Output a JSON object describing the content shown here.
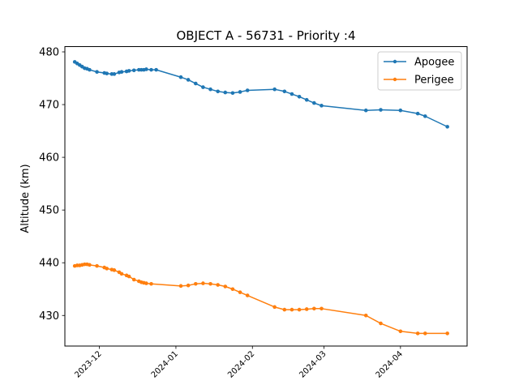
{
  "chart_data": {
    "type": "line",
    "title": "OBJECT A - 56731 - Priority :4",
    "xlabel": "",
    "ylabel": "Altitude (km)",
    "x_axis_type": "date",
    "xlim": [
      "2023-11-17",
      "2024-04-28"
    ],
    "ylim": [
      424.2,
      481.0
    ],
    "x_ticks": [
      "2023-12",
      "2024-01",
      "2024-02",
      "2024-03",
      "2024-04"
    ],
    "y_ticks": [
      430,
      440,
      450,
      460,
      470,
      480
    ],
    "grid": false,
    "legend_position": "top-right",
    "series": [
      {
        "name": "Apogee",
        "color": "#1f77b4",
        "points": [
          [
            "2023-11-21",
            478.1
          ],
          [
            "2023-11-22",
            477.8
          ],
          [
            "2023-11-23",
            477.5
          ],
          [
            "2023-11-24",
            477.2
          ],
          [
            "2023-11-25",
            476.9
          ],
          [
            "2023-11-26",
            476.8
          ],
          [
            "2023-11-27",
            476.6
          ],
          [
            "2023-11-30",
            476.2
          ],
          [
            "2023-12-03",
            476.0
          ],
          [
            "2023-12-04",
            475.9
          ],
          [
            "2023-12-06",
            475.8
          ],
          [
            "2023-12-07",
            475.8
          ],
          [
            "2023-12-09",
            476.1
          ],
          [
            "2023-12-10",
            476.2
          ],
          [
            "2023-12-12",
            476.3
          ],
          [
            "2023-12-13",
            476.4
          ],
          [
            "2023-12-15",
            476.5
          ],
          [
            "2023-12-17",
            476.6
          ],
          [
            "2023-12-18",
            476.6
          ],
          [
            "2023-12-19",
            476.6
          ],
          [
            "2023-12-20",
            476.7
          ],
          [
            "2023-12-22",
            476.6
          ],
          [
            "2023-12-24",
            476.6
          ],
          [
            "2024-01-03",
            475.2
          ],
          [
            "2024-01-06",
            474.7
          ],
          [
            "2024-01-09",
            474.0
          ],
          [
            "2024-01-12",
            473.3
          ],
          [
            "2024-01-15",
            472.9
          ],
          [
            "2024-01-18",
            472.5
          ],
          [
            "2024-01-21",
            472.3
          ],
          [
            "2024-01-24",
            472.2
          ],
          [
            "2024-01-27",
            472.4
          ],
          [
            "2024-01-30",
            472.7
          ],
          [
            "2024-02-10",
            472.9
          ],
          [
            "2024-02-14",
            472.5
          ],
          [
            "2024-02-17",
            472.0
          ],
          [
            "2024-02-20",
            471.5
          ],
          [
            "2024-02-23",
            470.9
          ],
          [
            "2024-02-26",
            470.3
          ],
          [
            "2024-02-29",
            469.8
          ],
          [
            "2024-03-18",
            468.9
          ],
          [
            "2024-03-24",
            469.0
          ],
          [
            "2024-04-01",
            468.9
          ],
          [
            "2024-04-08",
            468.3
          ],
          [
            "2024-04-11",
            467.8
          ],
          [
            "2024-04-20",
            465.8
          ]
        ]
      },
      {
        "name": "Perigee",
        "color": "#ff7f0e",
        "points": [
          [
            "2023-11-21",
            439.4
          ],
          [
            "2023-11-22",
            439.5
          ],
          [
            "2023-11-23",
            439.5
          ],
          [
            "2023-11-24",
            439.6
          ],
          [
            "2023-11-25",
            439.7
          ],
          [
            "2023-11-26",
            439.7
          ],
          [
            "2023-11-27",
            439.6
          ],
          [
            "2023-11-30",
            439.4
          ],
          [
            "2023-12-03",
            439.1
          ],
          [
            "2023-12-04",
            438.9
          ],
          [
            "2023-12-06",
            438.7
          ],
          [
            "2023-12-07",
            438.6
          ],
          [
            "2023-12-09",
            438.2
          ],
          [
            "2023-12-10",
            437.9
          ],
          [
            "2023-12-12",
            437.6
          ],
          [
            "2023-12-13",
            437.4
          ],
          [
            "2023-12-15",
            436.8
          ],
          [
            "2023-12-17",
            436.5
          ],
          [
            "2023-12-18",
            436.3
          ],
          [
            "2023-12-19",
            436.2
          ],
          [
            "2023-12-20",
            436.1
          ],
          [
            "2023-12-22",
            436.0
          ],
          [
            "2024-01-03",
            435.6
          ],
          [
            "2024-01-06",
            435.7
          ],
          [
            "2024-01-09",
            436.0
          ],
          [
            "2024-01-12",
            436.1
          ],
          [
            "2024-01-15",
            436.0
          ],
          [
            "2024-01-18",
            435.8
          ],
          [
            "2024-01-21",
            435.5
          ],
          [
            "2024-01-24",
            435.0
          ],
          [
            "2024-01-27",
            434.4
          ],
          [
            "2024-01-30",
            433.8
          ],
          [
            "2024-02-10",
            431.6
          ],
          [
            "2024-02-14",
            431.1
          ],
          [
            "2024-02-17",
            431.1
          ],
          [
            "2024-02-20",
            431.1
          ],
          [
            "2024-02-23",
            431.2
          ],
          [
            "2024-02-26",
            431.3
          ],
          [
            "2024-02-29",
            431.3
          ],
          [
            "2024-03-18",
            430.0
          ],
          [
            "2024-03-24",
            428.5
          ],
          [
            "2024-04-01",
            427.0
          ],
          [
            "2024-04-08",
            426.6
          ],
          [
            "2024-04-11",
            426.6
          ],
          [
            "2024-04-20",
            426.6
          ]
        ]
      }
    ]
  }
}
